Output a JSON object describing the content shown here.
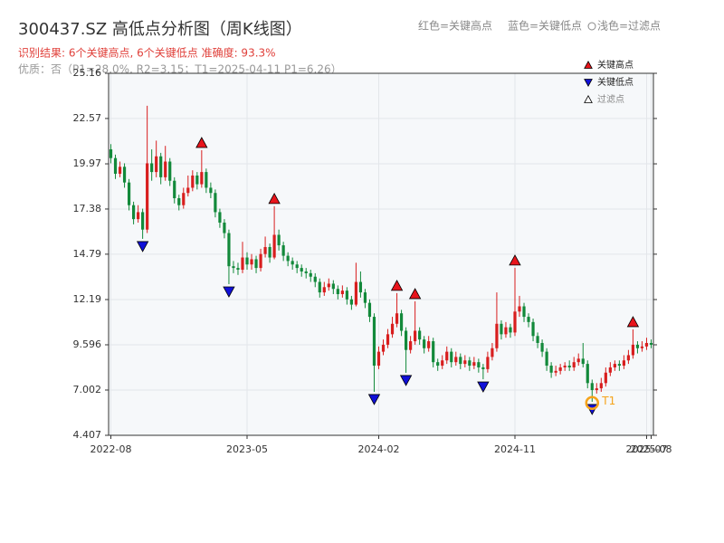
{
  "chart_data": {
    "type": "candlestick",
    "title": "300437.SZ 高低点分析图（周K线图）",
    "subtitle": "识别结果: 6个关键高点, 6个关键低点  准确度: 93.3%",
    "note": "优质：否（P1=28.0%, R2=3.15；T1=2025-04-11 P1=6.26）",
    "header_legend": [
      "红色=关键高点",
      "蓝色=关键低点",
      "浅色=过滤点"
    ],
    "up_color": "#d81e1e",
    "down_color": "#12893a",
    "grid": true,
    "legend": "upper right",
    "ylim": [
      4.407,
      25.16
    ],
    "yticks": [
      4.407,
      7.002,
      9.596,
      12.19,
      14.79,
      17.38,
      19.97,
      22.57,
      25.16
    ],
    "categories": [
      "2022-08",
      null,
      null,
      null,
      null,
      null,
      null,
      null,
      null,
      null,
      null,
      null,
      null,
      null,
      null,
      null,
      null,
      null,
      null,
      null,
      null,
      null,
      null,
      null,
      null,
      null,
      null,
      null,
      null,
      null,
      "2023-05",
      null,
      null,
      null,
      null,
      null,
      null,
      null,
      null,
      null,
      null,
      null,
      null,
      null,
      null,
      null,
      null,
      null,
      null,
      null,
      null,
      null,
      null,
      null,
      null,
      null,
      null,
      null,
      null,
      "2024-02",
      null,
      null,
      null,
      null,
      null,
      null,
      null,
      null,
      null,
      null,
      null,
      null,
      null,
      null,
      null,
      null,
      null,
      null,
      null,
      null,
      null,
      null,
      null,
      null,
      null,
      null,
      null,
      null,
      null,
      "2024-11",
      null,
      null,
      null,
      null,
      null,
      null,
      null,
      null,
      null,
      null,
      null,
      null,
      null,
      null,
      null,
      null,
      null,
      null,
      null,
      null,
      null,
      null,
      null,
      null,
      null,
      null,
      null,
      null,
      "2025-07",
      "2025-08"
    ],
    "open": [
      20.8,
      20.3,
      19.4,
      19.8,
      18.9,
      17.6,
      16.8,
      17.2,
      16.2,
      20.0,
      19.5,
      20.4,
      19.2,
      20.1,
      19.0,
      18.0,
      17.6,
      18.3,
      18.6,
      19.3,
      18.8,
      19.5,
      18.6,
      18.3,
      17.2,
      16.6,
      16.0,
      14.1,
      14.0,
      13.9,
      14.6,
      14.2,
      14.5,
      14.0,
      14.8,
      15.2,
      14.6,
      15.9,
      15.3,
      14.7,
      14.4,
      14.2,
      14.0,
      13.8,
      13.7,
      13.5,
      13.2,
      12.6,
      12.9,
      13.1,
      12.8,
      12.5,
      12.7,
      12.2,
      11.9,
      13.2,
      12.6,
      12.0,
      11.2,
      8.4,
      9.2,
      9.6,
      10.2,
      10.8,
      11.4,
      10.4,
      9.3,
      9.8,
      10.4,
      9.9,
      9.4,
      9.8,
      8.6,
      8.4,
      8.7,
      9.2,
      8.6,
      8.9,
      8.5,
      8.7,
      8.4,
      8.6,
      8.3,
      8.2,
      8.9,
      9.4,
      10.8,
      10.2,
      10.6,
      10.3,
      11.5,
      11.8,
      11.2,
      10.9,
      10.1,
      9.7,
      9.2,
      8.4,
      8.0,
      8.1,
      8.3,
      8.4,
      8.3,
      8.6,
      8.8,
      8.5,
      7.4,
      7.0,
      7.1,
      7.4,
      8.0,
      8.3,
      8.5,
      8.4,
      8.7,
      9.0,
      9.6,
      9.4,
      9.5,
      9.7
    ],
    "close": [
      20.3,
      19.4,
      19.8,
      18.9,
      17.6,
      16.8,
      17.2,
      16.2,
      20.0,
      19.5,
      20.4,
      19.2,
      20.1,
      19.0,
      18.0,
      17.6,
      18.3,
      18.6,
      19.3,
      18.8,
      19.5,
      18.6,
      18.3,
      17.2,
      16.6,
      16.0,
      14.1,
      14.0,
      13.9,
      14.6,
      14.2,
      14.5,
      14.0,
      14.8,
      15.2,
      14.6,
      15.9,
      15.3,
      14.7,
      14.4,
      14.2,
      14.0,
      13.8,
      13.7,
      13.5,
      13.2,
      12.6,
      12.9,
      13.1,
      12.8,
      12.5,
      12.7,
      12.2,
      11.9,
      13.2,
      12.6,
      12.0,
      11.2,
      8.4,
      9.2,
      9.6,
      10.2,
      10.8,
      11.4,
      10.4,
      9.3,
      9.8,
      10.4,
      9.9,
      9.4,
      9.8,
      8.6,
      8.4,
      8.7,
      9.2,
      8.6,
      8.9,
      8.5,
      8.7,
      8.4,
      8.6,
      8.3,
      8.2,
      8.9,
      9.4,
      10.8,
      10.2,
      10.6,
      10.3,
      11.5,
      11.8,
      11.2,
      10.9,
      10.1,
      9.7,
      9.2,
      8.4,
      8.0,
      8.1,
      8.3,
      8.4,
      8.3,
      8.6,
      8.8,
      8.5,
      7.4,
      7.0,
      7.1,
      7.4,
      8.0,
      8.3,
      8.5,
      8.4,
      8.7,
      9.0,
      9.6,
      9.4,
      9.5,
      9.7,
      9.6
    ],
    "high": [
      21.1,
      20.5,
      20.1,
      20.0,
      19.1,
      17.8,
      17.6,
      17.4,
      23.3,
      20.8,
      21.3,
      20.6,
      21.0,
      20.3,
      19.2,
      18.2,
      18.6,
      19.3,
      19.6,
      19.5,
      20.75,
      19.7,
      18.9,
      18.5,
      17.4,
      16.8,
      16.2,
      14.4,
      14.3,
      15.5,
      14.9,
      14.8,
      14.7,
      15.1,
      15.8,
      15.4,
      17.54,
      16.2,
      15.5,
      14.9,
      14.6,
      14.4,
      14.2,
      14.0,
      13.9,
      13.7,
      13.4,
      13.2,
      13.4,
      13.3,
      13.0,
      13.0,
      12.9,
      12.4,
      14.3,
      13.8,
      12.8,
      12.2,
      11.4,
      9.5,
      9.9,
      10.5,
      11.2,
      12.56,
      11.6,
      10.6,
      10.1,
      12.09,
      10.6,
      10.1,
      10.1,
      10.0,
      8.8,
      9.0,
      9.5,
      9.4,
      9.2,
      9.1,
      9.0,
      8.9,
      8.9,
      8.8,
      8.5,
      9.2,
      9.7,
      12.6,
      11.0,
      10.9,
      10.8,
      14.01,
      12.4,
      12.0,
      11.4,
      11.1,
      10.3,
      9.9,
      9.4,
      8.6,
      8.4,
      8.5,
      8.6,
      8.7,
      8.9,
      9.1,
      9.7,
      8.7,
      7.6,
      7.4,
      7.7,
      8.3,
      8.6,
      8.7,
      8.7,
      9.0,
      9.3,
      10.48,
      9.8,
      9.8,
      10.0,
      9.9
    ],
    "low": [
      20.0,
      19.1,
      19.2,
      18.6,
      17.3,
      16.5,
      16.6,
      15.67,
      16.0,
      19.0,
      19.2,
      18.8,
      19.0,
      18.7,
      17.7,
      17.3,
      17.4,
      18.1,
      18.4,
      18.5,
      18.6,
      18.3,
      18.0,
      16.9,
      16.3,
      15.7,
      13.07,
      13.7,
      13.6,
      13.7,
      13.9,
      13.9,
      13.7,
      13.8,
      14.6,
      14.3,
      14.5,
      15.0,
      14.4,
      14.1,
      13.9,
      13.7,
      13.5,
      13.4,
      13.2,
      12.9,
      12.3,
      12.4,
      12.7,
      12.5,
      12.2,
      12.3,
      11.9,
      11.6,
      11.8,
      12.3,
      11.7,
      10.9,
      6.9,
      8.2,
      9.0,
      9.4,
      10.0,
      10.6,
      10.1,
      7.99,
      9.1,
      9.6,
      9.6,
      9.1,
      9.2,
      8.3,
      8.1,
      8.2,
      8.5,
      8.3,
      8.4,
      8.2,
      8.3,
      8.1,
      8.2,
      8.0,
      7.62,
      8.0,
      8.7,
      9.2,
      9.9,
      10.0,
      10.0,
      10.1,
      11.2,
      10.9,
      10.6,
      9.8,
      9.4,
      8.9,
      8.1,
      7.7,
      7.8,
      7.9,
      8.1,
      8.1,
      8.1,
      8.4,
      8.3,
      7.1,
      6.33,
      6.8,
      6.9,
      7.2,
      7.8,
      8.1,
      8.1,
      8.2,
      8.5,
      8.8,
      9.1,
      9.2,
      9.3,
      9.4
    ],
    "series": [
      {
        "name": "关键高点",
        "color": "#e8141b",
        "marker": "up",
        "values": [
          null,
          null,
          null,
          null,
          null,
          null,
          null,
          null,
          null,
          null,
          null,
          null,
          null,
          null,
          null,
          null,
          null,
          null,
          null,
          null,
          20.75,
          null,
          null,
          null,
          null,
          null,
          null,
          null,
          null,
          null,
          null,
          null,
          null,
          null,
          null,
          null,
          17.54,
          null,
          null,
          null,
          null,
          null,
          null,
          null,
          null,
          null,
          null,
          null,
          null,
          null,
          null,
          null,
          null,
          null,
          null,
          null,
          null,
          null,
          null,
          null,
          null,
          null,
          null,
          12.56,
          null,
          null,
          null,
          12.09,
          null,
          null,
          null,
          null,
          null,
          null,
          null,
          null,
          null,
          null,
          null,
          null,
          null,
          null,
          null,
          null,
          null,
          null,
          null,
          null,
          null,
          14.01,
          null,
          null,
          null,
          null,
          null,
          null,
          null,
          null,
          null,
          null,
          null,
          null,
          null,
          null,
          null,
          null,
          null,
          null,
          null,
          null,
          null,
          null,
          null,
          null,
          null,
          10.48,
          null,
          null,
          null,
          null
        ]
      },
      {
        "name": "关键低点",
        "color": "#1010d8",
        "marker": "down",
        "values": [
          null,
          null,
          null,
          null,
          null,
          null,
          null,
          15.67,
          null,
          null,
          null,
          null,
          null,
          null,
          null,
          null,
          null,
          null,
          null,
          null,
          null,
          null,
          null,
          null,
          null,
          null,
          13.07,
          null,
          null,
          null,
          null,
          null,
          null,
          null,
          null,
          null,
          null,
          null,
          null,
          null,
          null,
          null,
          null,
          null,
          null,
          null,
          null,
          null,
          null,
          null,
          null,
          null,
          null,
          null,
          null,
          null,
          null,
          null,
          6.9,
          null,
          null,
          null,
          null,
          null,
          null,
          7.99,
          null,
          null,
          null,
          null,
          null,
          null,
          null,
          null,
          null,
          null,
          null,
          null,
          null,
          null,
          null,
          null,
          7.62,
          null,
          null,
          null,
          null,
          null,
          null,
          null,
          null,
          null,
          null,
          null,
          null,
          null,
          null,
          null,
          null,
          null,
          null,
          null,
          null,
          null,
          null,
          null,
          6.33,
          null,
          null,
          null,
          null,
          null,
          null,
          null,
          null,
          null,
          null,
          null,
          null,
          null
        ]
      },
      {
        "name": "过滤点",
        "color": "#ffffff",
        "marker": "up",
        "values": [
          null,
          null,
          null,
          null,
          null,
          null,
          null,
          null,
          null,
          null,
          null,
          null,
          null,
          null,
          null,
          null,
          null,
          null,
          null,
          null,
          null,
          null,
          null,
          null,
          null,
          null,
          null,
          null,
          null,
          null,
          null,
          null,
          null,
          null,
          null,
          null,
          null,
          null,
          null,
          null,
          null,
          null,
          null,
          null,
          null,
          null,
          null,
          null,
          null,
          null,
          null,
          null,
          null,
          null,
          null,
          null,
          null,
          null,
          null,
          null,
          null,
          null,
          null,
          null,
          null,
          null,
          null,
          null,
          null,
          null,
          null,
          null,
          null,
          null,
          null,
          null,
          null,
          null,
          null,
          null,
          null,
          null,
          null,
          null,
          null,
          null,
          null,
          null,
          null,
          null,
          null,
          null,
          null,
          null,
          null,
          null,
          null,
          null,
          null,
          null,
          null,
          null,
          null,
          null,
          null,
          null,
          null,
          null,
          null,
          null,
          null,
          null,
          null,
          null,
          null,
          null,
          null,
          null,
          null,
          null
        ]
      }
    ],
    "annotation": {
      "name": "T1",
      "color": "#f5a31a",
      "values": [
        null,
        null,
        null,
        null,
        null,
        null,
        null,
        null,
        null,
        null,
        null,
        null,
        null,
        null,
        null,
        null,
        null,
        null,
        null,
        null,
        null,
        null,
        null,
        null,
        null,
        null,
        null,
        null,
        null,
        null,
        null,
        null,
        null,
        null,
        null,
        null,
        null,
        null,
        null,
        null,
        null,
        null,
        null,
        null,
        null,
        null,
        null,
        null,
        null,
        null,
        null,
        null,
        null,
        null,
        null,
        null,
        null,
        null,
        null,
        null,
        null,
        null,
        null,
        null,
        null,
        null,
        null,
        null,
        null,
        null,
        null,
        null,
        null,
        null,
        null,
        null,
        null,
        null,
        null,
        null,
        null,
        null,
        null,
        null,
        null,
        null,
        null,
        null,
        null,
        null,
        null,
        null,
        null,
        null,
        null,
        null,
        null,
        null,
        null,
        null,
        null,
        null,
        null,
        null,
        null,
        null,
        6.26,
        null,
        null,
        null,
        null,
        null,
        null,
        null,
        null,
        null,
        null,
        null,
        null,
        null
      ]
    }
  }
}
